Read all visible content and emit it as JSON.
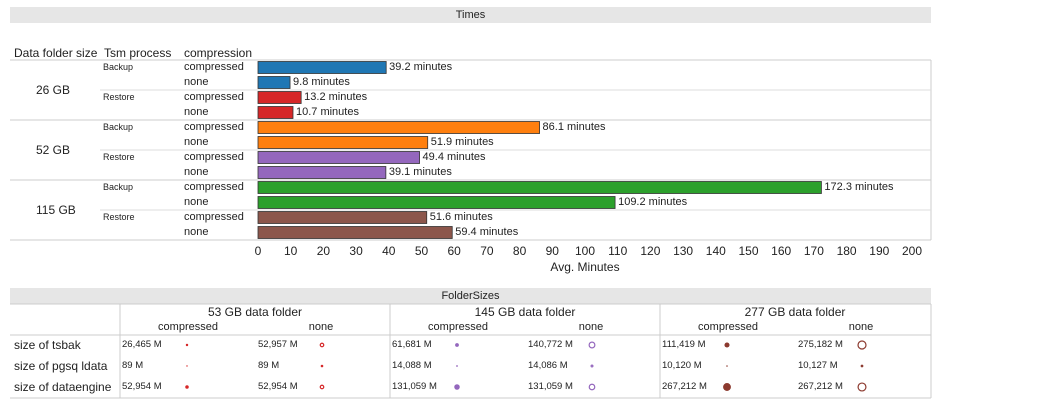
{
  "times": {
    "title": "Times",
    "headers": {
      "folder": "Data folder size",
      "process": "Tsm process",
      "compression": "compression"
    },
    "groups": [
      {
        "size": "26 GB",
        "color": "#1f77b4",
        "processes": [
          {
            "name": "Backup",
            "color": "#1f77b4",
            "rows": [
              {
                "compression": "compressed",
                "value": 39.2,
                "label": "39.2 minutes"
              },
              {
                "compression": "none",
                "value": 9.8,
                "label": "9.8 minutes"
              }
            ]
          },
          {
            "name": "Restore",
            "color": "#d62728",
            "rows": [
              {
                "compression": "compressed",
                "value": 13.2,
                "label": "13.2 minutes"
              },
              {
                "compression": "none",
                "value": 10.7,
                "label": "10.7 minutes"
              }
            ]
          }
        ]
      },
      {
        "size": "52 GB",
        "processes": [
          {
            "name": "Backup",
            "color": "#ff7f0e",
            "rows": [
              {
                "compression": "compressed",
                "value": 86.1,
                "label": "86.1 minutes"
              },
              {
                "compression": "none",
                "value": 51.9,
                "label": "51.9 minutes"
              }
            ]
          },
          {
            "name": "Restore",
            "color": "#9467bd",
            "rows": [
              {
                "compression": "compressed",
                "value": 49.4,
                "label": "49.4 minutes"
              },
              {
                "compression": "none",
                "value": 39.1,
                "label": "39.1 minutes"
              }
            ]
          }
        ]
      },
      {
        "size": "115 GB",
        "processes": [
          {
            "name": "Backup",
            "color": "#2ca02c",
            "rows": [
              {
                "compression": "compressed",
                "value": 172.3,
                "label": "172.3 minutes"
              },
              {
                "compression": "none",
                "value": 109.2,
                "label": "109.2 minutes"
              }
            ]
          },
          {
            "name": "Restore",
            "color": "#8c564b",
            "rows": [
              {
                "compression": "compressed",
                "value": 51.6,
                "label": "51.6 minutes"
              },
              {
                "compression": "none",
                "value": 59.4,
                "label": "59.4 minutes"
              }
            ]
          }
        ]
      }
    ]
  },
  "chart_data": {
    "type": "bar",
    "title": "Times",
    "xlabel": "Avg. Minutes",
    "xlim": [
      0,
      200
    ],
    "ticks": [
      0,
      10,
      20,
      30,
      40,
      50,
      60,
      70,
      80,
      90,
      100,
      110,
      120,
      130,
      140,
      150,
      160,
      170,
      180,
      190,
      200
    ]
  },
  "folder_sizes": {
    "title": "FolderSizes",
    "groups": [
      {
        "name": "53 GB data folder",
        "color": "#d62728"
      },
      {
        "name": "145 GB data folder",
        "color": "#9467bd"
      },
      {
        "name": "277 GB data folder",
        "color": "#8c3a2f"
      }
    ],
    "compression_labels": [
      "compressed",
      "none"
    ],
    "rows": [
      {
        "label": "size of tsbak",
        "cells": [
          {
            "text": "26,465 M",
            "value": 26465
          },
          {
            "text": "52,957 M",
            "value": 52957
          },
          {
            "text": "61,681 M",
            "value": 61681
          },
          {
            "text": "140,772 M",
            "value": 140772
          },
          {
            "text": "111,419 M",
            "value": 111419
          },
          {
            "text": "275,182 M",
            "value": 275182
          }
        ]
      },
      {
        "label": "size of pgsq ldata",
        "cells": [
          {
            "text": "89 M",
            "value": 89
          },
          {
            "text": "89 M",
            "value": 89
          },
          {
            "text": "14,088 M",
            "value": 14088
          },
          {
            "text": "14,086 M",
            "value": 14086
          },
          {
            "text": "10,120 M",
            "value": 10120
          },
          {
            "text": "10,127 M",
            "value": 10127
          }
        ]
      },
      {
        "label": "size of dataengine",
        "cells": [
          {
            "text": "52,954 M",
            "value": 52954
          },
          {
            "text": "52,954 M",
            "value": 52954
          },
          {
            "text": "131,059 M",
            "value": 131059
          },
          {
            "text": "131,059 M",
            "value": 131059
          },
          {
            "text": "267,212 M",
            "value": 267212
          },
          {
            "text": "267,212 M",
            "value": 267212
          }
        ]
      }
    ]
  }
}
